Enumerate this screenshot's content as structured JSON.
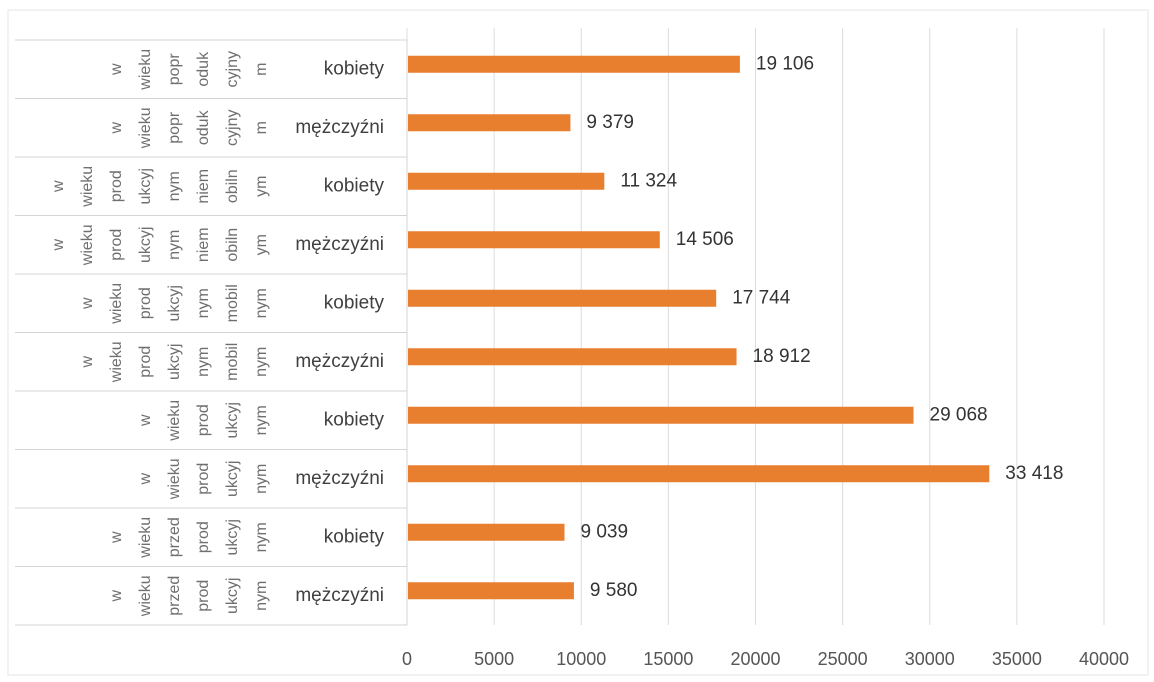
{
  "chart_data": {
    "type": "bar",
    "orientation": "horizontal",
    "title": "",
    "xlabel": "",
    "ylabel": "",
    "xlim": [
      0,
      40000
    ],
    "x_ticks": [
      "0",
      "5000",
      "10000",
      "15000",
      "20000",
      "25000",
      "30000",
      "35000",
      "40000"
    ],
    "grid": true,
    "legend": "none",
    "color": "#e87f2e",
    "group_labels": [
      [
        "w",
        "wieku",
        "popr",
        "oduk",
        "cyjny",
        "m"
      ],
      [
        "w",
        "wieku",
        "popr",
        "oduk",
        "cyjny",
        "m"
      ],
      [
        "w",
        "wieku",
        "prod",
        "ukcyj",
        "nym",
        "niem",
        "obiln",
        "ym"
      ],
      [
        "w",
        "wieku",
        "prod",
        "ukcyj",
        "nym",
        "niem",
        "obiln",
        "ym"
      ],
      [
        "w",
        "wieku",
        "prod",
        "ukcyj",
        "nym",
        "mobil",
        "nym"
      ],
      [
        "w",
        "wieku",
        "prod",
        "ukcyj",
        "nym",
        "mobil",
        "nym"
      ],
      [
        "w",
        "wieku",
        "prod",
        "ukcyj",
        "nym"
      ],
      [
        "w",
        "wieku",
        "prod",
        "ukcyj",
        "nym"
      ],
      [
        "w",
        "wieku",
        "przed",
        "prod",
        "ukcyj",
        "nym"
      ],
      [
        "w",
        "wieku",
        "przed",
        "prod",
        "ukcyj",
        "nym"
      ]
    ],
    "categories": [
      "kobiety",
      "mężczyźni",
      "kobiety",
      "mężczyźni",
      "kobiety",
      "mężczyźni",
      "kobiety",
      "mężczyźni",
      "kobiety",
      "mężczyźni"
    ],
    "values": [
      19106,
      9379,
      11324,
      14506,
      17744,
      18912,
      29068,
      33418,
      9039,
      9580
    ],
    "value_labels": [
      "19 106",
      "9 379",
      "11 324",
      "14 506",
      "17 744",
      "18 912",
      "29 068",
      "33 418",
      "9 039",
      "9 580"
    ]
  }
}
